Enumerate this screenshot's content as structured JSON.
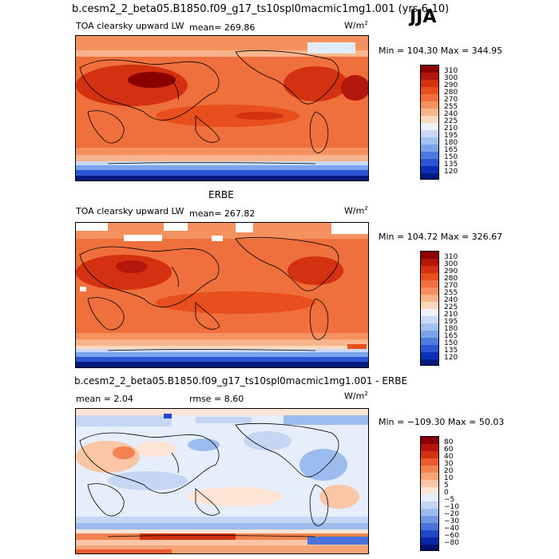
{
  "header": {
    "case_title": "b.cesm2_2_beta05.B1850.f09_g17_ts10spl0macmic1mg1.001 (yrs 6-10)",
    "season": "JJA"
  },
  "panels": [
    {
      "id": "model",
      "variable": "TOA clearsky upward LW",
      "mean_text": "mean=  269.86",
      "units_base": "W/m",
      "units_exp": "2",
      "minmax_text": "Min = 104.30 Max = 344.95",
      "levels": [
        "310",
        "300",
        "290",
        "280",
        "270",
        "255",
        "240",
        "225",
        "210",
        "195",
        "180",
        "165",
        "150",
        "135",
        "120"
      ],
      "colors": [
        "#8b0000",
        "#b3160a",
        "#d43112",
        "#e84f1c",
        "#f06f3c",
        "#f4915e",
        "#f8b48a",
        "#fbd9bc",
        "#eef3fb",
        "#c8daf6",
        "#a1c1f0",
        "#7aa3ea",
        "#4f7be0",
        "#2a55d3",
        "#0b2fb8",
        "#001a80"
      ]
    },
    {
      "id": "obs",
      "title": "ERBE",
      "variable": "TOA clearsky upward LW",
      "mean_text": "mean=  267.82",
      "units_base": "W/m",
      "units_exp": "2",
      "minmax_text": "Min = 104.72 Max = 326.67",
      "levels": [
        "310",
        "300",
        "290",
        "280",
        "270",
        "255",
        "240",
        "225",
        "210",
        "195",
        "180",
        "165",
        "150",
        "135",
        "120"
      ],
      "colors": [
        "#8b0000",
        "#b3160a",
        "#d43112",
        "#e84f1c",
        "#f06f3c",
        "#f4915e",
        "#f8b48a",
        "#fbd9bc",
        "#eef3fb",
        "#c8daf6",
        "#a1c1f0",
        "#7aa3ea",
        "#4f7be0",
        "#2a55d3",
        "#0b2fb8",
        "#001a80"
      ]
    },
    {
      "id": "diff",
      "title": "b.cesm2_2_beta05.B1850.f09_g17_ts10spl0macmic1mg1.001 - ERBE",
      "mean_text": "mean =    2.04",
      "rmse_text": "rmse =    8.60",
      "units_base": "W/m",
      "units_exp": "2",
      "minmax_text": "Min = −109.30 Max =  50.03",
      "levels": [
        "80",
        "60",
        "40",
        "30",
        "20",
        "10",
        "5",
        "0",
        "−5",
        "−10",
        "−20",
        "−30",
        "−40",
        "−60",
        "−80"
      ],
      "colors": [
        "#8b0000",
        "#b3160a",
        "#d43112",
        "#ea5a2a",
        "#f2824e",
        "#f6a478",
        "#fac6a6",
        "#fde4d4",
        "#e6eefb",
        "#c5d6f4",
        "#9cbbee",
        "#7399e4",
        "#4a74da",
        "#2248c8",
        "#0a25a6",
        "#001070"
      ]
    }
  ]
}
